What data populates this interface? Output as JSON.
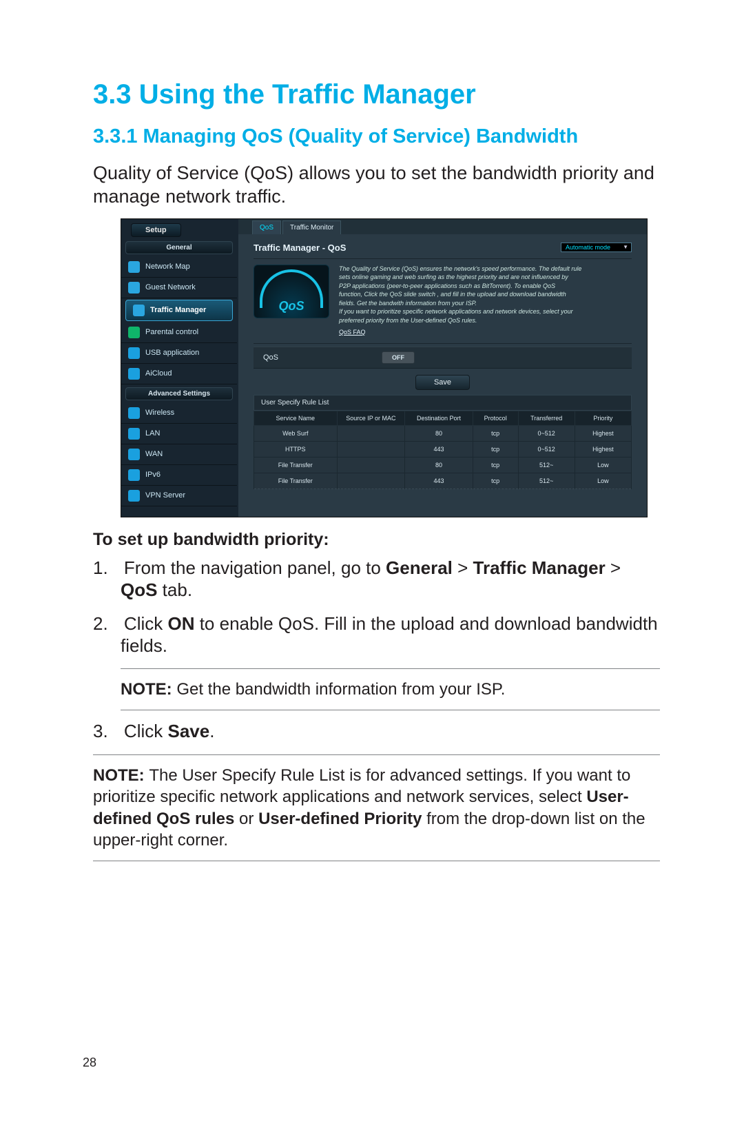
{
  "heading_main": "3.3   Using the Traffic Manager",
  "heading_sub": "3.3.1 Managing QoS (Quality of Service) Bandwidth",
  "intro": "Quality of Service (QoS) allows you to set the bandwidth priority and manage network traffic.",
  "steps_heading": "To set up bandwidth priority:",
  "step1_pre": "From the navigation panel, go to ",
  "step1_b1": "General",
  "step1_gt1": " > ",
  "step1_b2": "Traffic Manager",
  "step1_gt2": " > ",
  "step1_b3": "QoS",
  "step1_post": " tab.",
  "step2_pre": "Click ",
  "step2_b1": "ON",
  "step2_post": " to enable QoS. Fill in the upload and download bandwidth fields.",
  "note1_label": "NOTE: ",
  "note1_text": "Get the bandwidth information from your ISP.",
  "step3_pre": "Click ",
  "step3_b1": "Save",
  "step3_post": ".",
  "note2_label": "NOTE:   ",
  "note2_text1": "The User Specify Rule List is for advanced settings. If you want to prioritize specific network applications and network services, select ",
  "note2_b1": "User-defined QoS rules",
  "note2_or": " or ",
  "note2_b2": "User-defined Priority",
  "note2_text2": " from the drop-down list on the upper-right corner.",
  "page_number": "28",
  "screenshot": {
    "setup_tab": "Setup",
    "section_general": "General",
    "section_advanced": "Advanced Settings",
    "sidebar_general": [
      {
        "label": "Network Map",
        "icon_color": "#2aa6e0"
      },
      {
        "label": "Guest Network",
        "icon_color": "#2aa6e0"
      },
      {
        "label": "Traffic Manager",
        "icon_color": "#2aa6e0",
        "active": true
      },
      {
        "label": "Parental control",
        "icon_color": "#0fb56a"
      },
      {
        "label": "USB application",
        "icon_color": "#1aa0df"
      },
      {
        "label": "AiCloud",
        "icon_color": "#1aa0df"
      }
    ],
    "sidebar_advanced": [
      {
        "label": "Wireless",
        "icon_color": "#1aa0df"
      },
      {
        "label": "LAN",
        "icon_color": "#1aa0df"
      },
      {
        "label": "WAN",
        "icon_color": "#1aa0df"
      },
      {
        "label": "IPv6",
        "icon_color": "#1aa0df"
      },
      {
        "label": "VPN Server",
        "icon_color": "#1aa0df"
      }
    ],
    "tabs": {
      "active": "QoS",
      "other": "Traffic Monitor"
    },
    "panel_title": "Traffic Manager - QoS",
    "mode_select": "Automatic mode",
    "gauge_label": "QoS",
    "description_lines": [
      "The Quality of Service (QoS) ensures the network's speed performance. The default rule",
      "sets online gaming and web surfing as the highest priority and are not influenced by",
      "P2P applications (peer-to-peer applications such as BitTorrent). To enable QoS",
      "function, Click the QoS slide switch , and fill in the upload and download bandwidth",
      "fields. Get the bandwith information from your ISP.",
      "If you want to prioritize specific network applications and network devices, select your",
      "preferred priority from the User-defined QoS rules."
    ],
    "faq_link": "QoS FAQ",
    "form": {
      "label": "QoS",
      "toggle": "OFF",
      "save": "Save"
    },
    "rule_list_title": "User Specify Rule List",
    "table": {
      "columns": [
        "Service Name",
        "Source IP or MAC",
        "Destination Port",
        "Protocol",
        "Transferred",
        "Priority"
      ],
      "col_widths": [
        "22%",
        "18%",
        "18%",
        "12%",
        "15%",
        "15%"
      ],
      "rows": [
        [
          "Web Surf",
          "",
          "80",
          "tcp",
          "0~512",
          "Highest"
        ],
        [
          "HTTPS",
          "",
          "443",
          "tcp",
          "0~512",
          "Highest"
        ],
        [
          "File Transfer",
          "",
          "80",
          "tcp",
          "512~",
          "Low"
        ],
        [
          "File Transfer",
          "",
          "443",
          "tcp",
          "512~",
          "Low"
        ]
      ]
    },
    "colors": {
      "page_bg": "#182530",
      "panel_bg": "#2a3a45",
      "accent": "#18c2e6",
      "row_bg": "#26343e"
    }
  }
}
